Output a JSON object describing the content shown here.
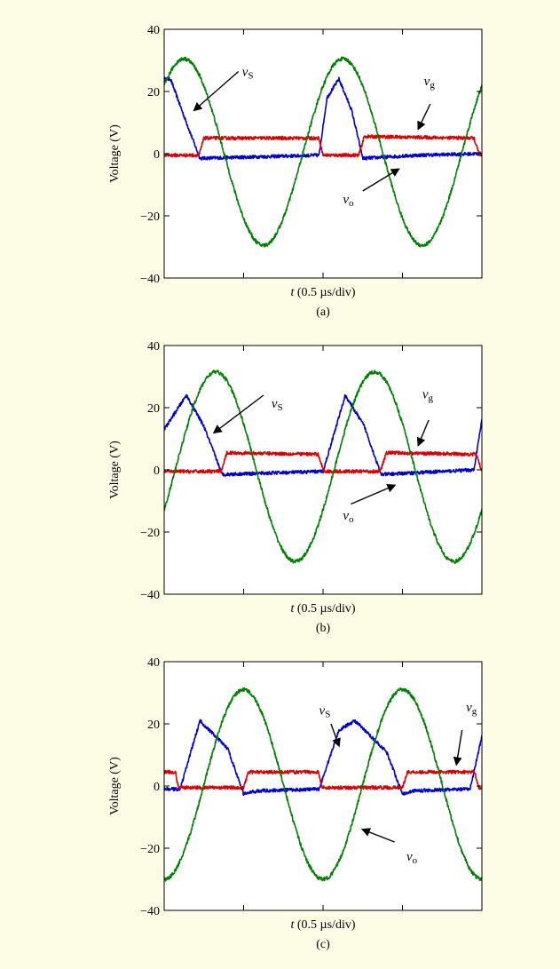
{
  "chart_data": [
    {
      "type": "line",
      "panel_label": "(a)",
      "ylabel": "Voltage (V)",
      "xlabel_var": "t",
      "xlabel_unit": " (0.5 µs/div)",
      "ylim": [
        -40,
        40
      ],
      "yticks": [
        40,
        20,
        0,
        -20,
        -40
      ],
      "x_divisions": 4,
      "xlim": [
        0,
        4
      ],
      "series": [
        {
          "color": "#0000cc",
          "x": [
            0,
            0.08,
            0.25,
            0.45,
            1.95,
            2.05,
            2.2,
            2.36,
            2.5,
            3.2,
            4.0
          ],
          "y": [
            24,
            24,
            12,
            -1.5,
            -0.5,
            18,
            24,
            14,
            -1.5,
            -0.5,
            0
          ]
        },
        {
          "color": "#dd0000",
          "x": [
            0,
            0.44,
            0.5,
            1.95,
            2.0,
            2.45,
            2.52,
            3.9,
            3.97,
            4.0
          ],
          "y": [
            -0.5,
            -0.5,
            5,
            5,
            -0.5,
            -0.5,
            5.5,
            5,
            -0.5,
            -0.5
          ]
        },
        {
          "color": "#008000",
          "sine": {
            "amp": 30,
            "offset": 0.5,
            "period": 2.0,
            "peak_x": 0.25
          }
        }
      ],
      "annotations": [
        {
          "text": "v",
          "sub": "S",
          "label_x": 0.98,
          "label_y": 25,
          "arrow_to_x": 0.38,
          "arrow_to_y": 14
        },
        {
          "text": "v",
          "sub": "g",
          "label_x": 3.27,
          "label_y": 22,
          "arrow_from_x": 3.35,
          "arrow_from_y": 16,
          "arrow_to_x": 3.2,
          "arrow_to_y": 8
        },
        {
          "text": "v",
          "sub": "o",
          "label_x": 2.25,
          "label_y": -16,
          "arrow_from_x": 2.5,
          "arrow_from_y": -12,
          "arrow_to_x": 2.95,
          "arrow_to_y": -5
        }
      ]
    },
    {
      "type": "line",
      "panel_label": "(b)",
      "ylabel": "Voltage (V)",
      "xlabel_var": "t",
      "xlabel_unit": " (0.5 µs/div)",
      "ylim": [
        -40,
        40
      ],
      "yticks": [
        40,
        20,
        0,
        -20,
        -40
      ],
      "x_divisions": 4,
      "xlim": [
        0,
        4
      ],
      "series": [
        {
          "color": "#0000cc",
          "x": [
            0,
            0.28,
            0.5,
            0.73,
            2.0,
            2.28,
            2.52,
            2.73,
            3.9,
            4.0
          ],
          "y": [
            13,
            24,
            14,
            -1.5,
            -0.5,
            24,
            14,
            -1.5,
            0,
            16
          ]
        },
        {
          "color": "#dd0000",
          "x": [
            0,
            0.72,
            0.79,
            1.94,
            2.01,
            2.72,
            2.8,
            3.93,
            4.0
          ],
          "y": [
            -0.5,
            -0.5,
            5.5,
            5,
            -0.5,
            -0.5,
            5.5,
            5,
            -0.5
          ]
        },
        {
          "color": "#008000",
          "sine": {
            "amp": 30.5,
            "offset": 1,
            "period": 2.0,
            "peak_x": 0.65
          }
        }
      ],
      "annotations": [
        {
          "text": "v",
          "sub": "S",
          "label_x": 1.35,
          "label_y": 20,
          "arrow_from_x": 1.25,
          "arrow_from_y": 24,
          "arrow_to_x": 0.63,
          "arrow_to_y": 12
        },
        {
          "text": "v",
          "sub": "g",
          "label_x": 3.25,
          "label_y": 23,
          "arrow_from_x": 3.33,
          "arrow_from_y": 16,
          "arrow_to_x": 3.2,
          "arrow_to_y": 8
        },
        {
          "text": "v",
          "sub": "o",
          "label_x": 2.25,
          "label_y": -16,
          "arrow_from_x": 2.35,
          "arrow_from_y": -11,
          "arrow_to_x": 2.9,
          "arrow_to_y": -5
        }
      ]
    },
    {
      "type": "line",
      "panel_label": "(c)",
      "ylabel": "Voltage (V)",
      "xlabel_var": "t",
      "xlabel_unit": " (0.5 µs/div)",
      "ylim": [
        -40,
        40
      ],
      "yticks": [
        40,
        20,
        0,
        -20,
        -40
      ],
      "x_divisions": 4,
      "xlim": [
        0,
        4
      ],
      "series": [
        {
          "color": "#0000cc",
          "x": [
            0,
            0.2,
            0.45,
            0.8,
            1.0,
            1.2,
            1.95,
            2.2,
            2.4,
            2.8,
            3.0,
            3.15,
            3.85,
            4.0
          ],
          "y": [
            -1,
            -1,
            21,
            12,
            -2.5,
            -1.5,
            -1,
            18,
            21,
            11,
            -2.5,
            -1.5,
            -1,
            16
          ]
        },
        {
          "color": "#dd0000",
          "x": [
            0,
            0.14,
            0.18,
            1.0,
            1.06,
            1.94,
            1.99,
            3.0,
            3.06,
            3.91,
            3.96,
            4.0
          ],
          "y": [
            4.5,
            4.5,
            -0.5,
            -0.5,
            4.5,
            4.5,
            -0.5,
            -0.5,
            4.5,
            4.5,
            -0.5,
            -0.5
          ]
        },
        {
          "color": "#008000",
          "sine": {
            "amp": 30.5,
            "offset": 0.5,
            "period": 2.0,
            "peak_x": 1.0
          }
        }
      ],
      "annotations": [
        {
          "text": "v",
          "sub": "S",
          "label_x": 1.95,
          "label_y": 23,
          "arrow_from_x": 2.1,
          "arrow_from_y": 20,
          "arrow_to_x": 2.2,
          "arrow_to_y": 13
        },
        {
          "text": "v",
          "sub": "g",
          "label_x": 3.8,
          "label_y": 24,
          "arrow_from_x": 3.75,
          "arrow_from_y": 18,
          "arrow_to_x": 3.68,
          "arrow_to_y": 7
        },
        {
          "text": "v",
          "sub": "o",
          "label_x": 3.05,
          "label_y": -24,
          "arrow_from_x": 2.9,
          "arrow_from_y": -18,
          "arrow_to_x": 2.5,
          "arrow_to_y": -14
        }
      ]
    }
  ]
}
